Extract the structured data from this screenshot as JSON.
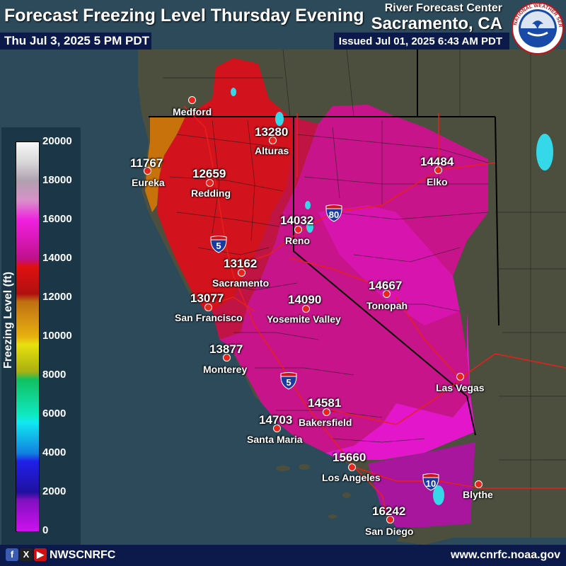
{
  "header": {
    "title": "Forecast Freezing Level Thursday Evening",
    "valid_time": "Thu Jul 3, 2025 5 PM PDT",
    "rfc_line1": "River Forecast Center",
    "rfc_line2": "Sacramento, CA",
    "issued": "Issued Jul 01, 2025 6:43 AM PDT",
    "logo_text": "NATIONAL WEATHER SERVICE"
  },
  "legend": {
    "axis_label": "Freezing Level (ft)",
    "ticks": [
      "20000",
      "18000",
      "16000",
      "14000",
      "12000",
      "10000",
      "8000",
      "6000",
      "4000",
      "2000",
      "0"
    ]
  },
  "cities": [
    {
      "name": "Medford",
      "value": ""
    },
    {
      "name": "Alturas",
      "value": "13280"
    },
    {
      "name": "Eureka",
      "value": "11767"
    },
    {
      "name": "Redding",
      "value": "12659"
    },
    {
      "name": "Elko",
      "value": "14484"
    },
    {
      "name": "Reno",
      "value": "14032"
    },
    {
      "name": "Sacramento",
      "value": "13162"
    },
    {
      "name": "San Francisco",
      "value": "13077"
    },
    {
      "name": "Tonopah",
      "value": "14667"
    },
    {
      "name": "Yosemite Valley",
      "value": "14090"
    },
    {
      "name": "Monterey",
      "value": "13877"
    },
    {
      "name": "Las Vegas",
      "value": ""
    },
    {
      "name": "Bakersfield",
      "value": "14581"
    },
    {
      "name": "Santa Maria",
      "value": "14703"
    },
    {
      "name": "Los Angeles",
      "value": "15660"
    },
    {
      "name": "Blythe",
      "value": ""
    },
    {
      "name": "San Diego",
      "value": "16242"
    }
  ],
  "highways": [
    {
      "number": "80"
    },
    {
      "number": "5"
    },
    {
      "number": "5"
    },
    {
      "number": "10"
    }
  ],
  "footer": {
    "handle": "NWSCNRFC",
    "url": "www.cnrfc.noaa.gov",
    "social_icons": [
      "facebook-icon",
      "x-icon",
      "youtube-icon"
    ]
  },
  "colors": {
    "ocean": "#2d4a5a",
    "land": "#4a4d3c",
    "orange_band": "#c8720c",
    "red_band": "#d0121a",
    "crimson_band": "#b8123a",
    "magenta_band": "#c81484",
    "pink_band": "#e014c8",
    "purple_band": "#a8149c",
    "banner": "#0b1a4a",
    "city_dot": "#e8241c"
  }
}
